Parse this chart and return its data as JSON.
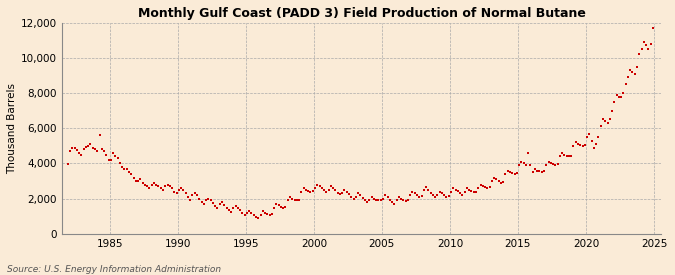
{
  "title": "Monthly Gulf Coast (PADD 3) Field Production of Normal Butane",
  "ylabel": "Thousand Barrels",
  "source_text": "Source: U.S. Energy Information Administration",
  "marker_color": "#cc0000",
  "background_color": "#faebd7",
  "grid_color": "#aaaaaa",
  "ylim": [
    0,
    12000
  ],
  "yticks": [
    0,
    2000,
    4000,
    6000,
    8000,
    10000,
    12000
  ],
  "xlim_start": 1981.5,
  "xlim_end": 2025.5,
  "xticks": [
    1985,
    1990,
    1995,
    2000,
    2005,
    2010,
    2015,
    2020,
    2025
  ],
  "data_points": [
    [
      1981.917,
      3960
    ],
    [
      1982.083,
      4680
    ],
    [
      1982.25,
      4850
    ],
    [
      1982.417,
      4900
    ],
    [
      1982.583,
      4750
    ],
    [
      1982.75,
      4600
    ],
    [
      1982.917,
      4500
    ],
    [
      1983.083,
      4800
    ],
    [
      1983.25,
      4950
    ],
    [
      1983.417,
      5000
    ],
    [
      1983.583,
      5100
    ],
    [
      1983.75,
      4900
    ],
    [
      1983.917,
      4800
    ],
    [
      1984.083,
      4700
    ],
    [
      1984.25,
      5600
    ],
    [
      1984.417,
      4800
    ],
    [
      1984.583,
      4700
    ],
    [
      1984.75,
      4500
    ],
    [
      1984.917,
      4200
    ],
    [
      1985.083,
      4200
    ],
    [
      1985.25,
      4600
    ],
    [
      1985.417,
      4400
    ],
    [
      1985.583,
      4300
    ],
    [
      1985.75,
      4000
    ],
    [
      1985.917,
      3800
    ],
    [
      1986.083,
      3700
    ],
    [
      1986.25,
      3700
    ],
    [
      1986.417,
      3500
    ],
    [
      1986.583,
      3400
    ],
    [
      1986.75,
      3200
    ],
    [
      1986.917,
      3000
    ],
    [
      1987.083,
      3000
    ],
    [
      1987.25,
      3100
    ],
    [
      1987.417,
      2900
    ],
    [
      1987.583,
      2800
    ],
    [
      1987.75,
      2700
    ],
    [
      1987.917,
      2600
    ],
    [
      1988.083,
      2800
    ],
    [
      1988.25,
      2900
    ],
    [
      1988.417,
      2800
    ],
    [
      1988.583,
      2700
    ],
    [
      1988.75,
      2600
    ],
    [
      1988.917,
      2500
    ],
    [
      1989.083,
      2700
    ],
    [
      1989.25,
      2800
    ],
    [
      1989.417,
      2700
    ],
    [
      1989.583,
      2600
    ],
    [
      1989.75,
      2400
    ],
    [
      1989.917,
      2300
    ],
    [
      1990.083,
      2500
    ],
    [
      1990.25,
      2600
    ],
    [
      1990.417,
      2500
    ],
    [
      1990.583,
      2300
    ],
    [
      1990.75,
      2100
    ],
    [
      1990.917,
      1950
    ],
    [
      1991.083,
      2200
    ],
    [
      1991.25,
      2300
    ],
    [
      1991.417,
      2200
    ],
    [
      1991.583,
      2000
    ],
    [
      1991.75,
      1800
    ],
    [
      1991.917,
      1700
    ],
    [
      1992.083,
      1900
    ],
    [
      1992.25,
      2000
    ],
    [
      1992.417,
      1900
    ],
    [
      1992.583,
      1750
    ],
    [
      1992.75,
      1600
    ],
    [
      1992.917,
      1500
    ],
    [
      1993.083,
      1700
    ],
    [
      1993.25,
      1800
    ],
    [
      1993.417,
      1650
    ],
    [
      1993.583,
      1500
    ],
    [
      1993.75,
      1350
    ],
    [
      1993.917,
      1250
    ],
    [
      1994.083,
      1500
    ],
    [
      1994.25,
      1600
    ],
    [
      1994.417,
      1500
    ],
    [
      1994.583,
      1350
    ],
    [
      1994.75,
      1200
    ],
    [
      1994.917,
      1100
    ],
    [
      1995.083,
      1200
    ],
    [
      1995.25,
      1300
    ],
    [
      1995.417,
      1200
    ],
    [
      1995.583,
      1050
    ],
    [
      1995.75,
      950
    ],
    [
      1995.917,
      900
    ],
    [
      1996.083,
      1100
    ],
    [
      1996.25,
      1300
    ],
    [
      1996.417,
      1200
    ],
    [
      1996.583,
      1150
    ],
    [
      1996.75,
      1100
    ],
    [
      1996.917,
      1150
    ],
    [
      1997.083,
      1500
    ],
    [
      1997.25,
      1700
    ],
    [
      1997.417,
      1650
    ],
    [
      1997.583,
      1550
    ],
    [
      1997.75,
      1500
    ],
    [
      1997.917,
      1550
    ],
    [
      1998.083,
      1900
    ],
    [
      1998.25,
      2100
    ],
    [
      1998.417,
      2000
    ],
    [
      1998.583,
      1950
    ],
    [
      1998.75,
      1900
    ],
    [
      1998.917,
      1950
    ],
    [
      1999.083,
      2400
    ],
    [
      1999.25,
      2600
    ],
    [
      1999.417,
      2500
    ],
    [
      1999.583,
      2450
    ],
    [
      1999.75,
      2400
    ],
    [
      1999.917,
      2450
    ],
    [
      2000.083,
      2600
    ],
    [
      2000.25,
      2800
    ],
    [
      2000.417,
      2700
    ],
    [
      2000.583,
      2600
    ],
    [
      2000.75,
      2500
    ],
    [
      2000.917,
      2400
    ],
    [
      2001.083,
      2500
    ],
    [
      2001.25,
      2700
    ],
    [
      2001.417,
      2600
    ],
    [
      2001.583,
      2500
    ],
    [
      2001.75,
      2350
    ],
    [
      2001.917,
      2250
    ],
    [
      2002.083,
      2300
    ],
    [
      2002.25,
      2500
    ],
    [
      2002.417,
      2400
    ],
    [
      2002.583,
      2250
    ],
    [
      2002.75,
      2100
    ],
    [
      2002.917,
      2000
    ],
    [
      2003.083,
      2100
    ],
    [
      2003.25,
      2300
    ],
    [
      2003.417,
      2200
    ],
    [
      2003.583,
      2050
    ],
    [
      2003.75,
      1900
    ],
    [
      2003.917,
      1800
    ],
    [
      2004.083,
      1950
    ],
    [
      2004.25,
      2100
    ],
    [
      2004.417,
      2000
    ],
    [
      2004.583,
      1950
    ],
    [
      2004.75,
      1900
    ],
    [
      2004.917,
      1900
    ],
    [
      2005.083,
      2000
    ],
    [
      2005.25,
      2200
    ],
    [
      2005.417,
      2100
    ],
    [
      2005.583,
      1950
    ],
    [
      2005.75,
      1800
    ],
    [
      2005.917,
      1700
    ],
    [
      2006.083,
      1900
    ],
    [
      2006.25,
      2100
    ],
    [
      2006.417,
      2000
    ],
    [
      2006.583,
      1900
    ],
    [
      2006.75,
      1850
    ],
    [
      2006.917,
      1900
    ],
    [
      2007.083,
      2200
    ],
    [
      2007.25,
      2400
    ],
    [
      2007.417,
      2300
    ],
    [
      2007.583,
      2200
    ],
    [
      2007.75,
      2100
    ],
    [
      2007.917,
      2150
    ],
    [
      2008.083,
      2500
    ],
    [
      2008.25,
      2650
    ],
    [
      2008.417,
      2500
    ],
    [
      2008.583,
      2350
    ],
    [
      2008.75,
      2200
    ],
    [
      2008.917,
      2100
    ],
    [
      2009.083,
      2200
    ],
    [
      2009.25,
      2400
    ],
    [
      2009.417,
      2300
    ],
    [
      2009.583,
      2200
    ],
    [
      2009.75,
      2100
    ],
    [
      2009.917,
      2150
    ],
    [
      2010.083,
      2400
    ],
    [
      2010.25,
      2600
    ],
    [
      2010.417,
      2500
    ],
    [
      2010.583,
      2450
    ],
    [
      2010.75,
      2300
    ],
    [
      2010.917,
      2200
    ],
    [
      2011.083,
      2400
    ],
    [
      2011.25,
      2600
    ],
    [
      2011.417,
      2500
    ],
    [
      2011.583,
      2450
    ],
    [
      2011.75,
      2400
    ],
    [
      2011.917,
      2400
    ],
    [
      2012.083,
      2600
    ],
    [
      2012.25,
      2800
    ],
    [
      2012.417,
      2700
    ],
    [
      2012.583,
      2650
    ],
    [
      2012.75,
      2600
    ],
    [
      2012.917,
      2650
    ],
    [
      2013.083,
      3000
    ],
    [
      2013.25,
      3200
    ],
    [
      2013.417,
      3100
    ],
    [
      2013.583,
      3000
    ],
    [
      2013.75,
      2900
    ],
    [
      2013.917,
      2950
    ],
    [
      2014.083,
      3400
    ],
    [
      2014.25,
      3600
    ],
    [
      2014.417,
      3500
    ],
    [
      2014.583,
      3450
    ],
    [
      2014.75,
      3400
    ],
    [
      2014.917,
      3450
    ],
    [
      2015.083,
      3900
    ],
    [
      2015.25,
      4100
    ],
    [
      2015.417,
      4000
    ],
    [
      2015.583,
      3900
    ],
    [
      2015.75,
      4600
    ],
    [
      2015.917,
      3900
    ],
    [
      2016.083,
      3500
    ],
    [
      2016.25,
      3700
    ],
    [
      2016.417,
      3600
    ],
    [
      2016.583,
      3550
    ],
    [
      2016.75,
      3500
    ],
    [
      2016.917,
      3550
    ],
    [
      2017.083,
      3900
    ],
    [
      2017.25,
      4100
    ],
    [
      2017.417,
      4000
    ],
    [
      2017.583,
      3950
    ],
    [
      2017.75,
      3900
    ],
    [
      2017.917,
      3950
    ],
    [
      2018.083,
      4400
    ],
    [
      2018.25,
      4600
    ],
    [
      2018.417,
      4500
    ],
    [
      2018.583,
      4450
    ],
    [
      2018.75,
      4400
    ],
    [
      2018.917,
      4450
    ],
    [
      2019.083,
      5000
    ],
    [
      2019.25,
      5200
    ],
    [
      2019.417,
      5100
    ],
    [
      2019.583,
      5050
    ],
    [
      2019.75,
      5000
    ],
    [
      2019.917,
      5050
    ],
    [
      2020.083,
      5500
    ],
    [
      2020.25,
      5700
    ],
    [
      2020.417,
      5300
    ],
    [
      2020.583,
      4900
    ],
    [
      2020.75,
      5100
    ],
    [
      2020.917,
      5500
    ],
    [
      2021.083,
      6100
    ],
    [
      2021.25,
      6500
    ],
    [
      2021.417,
      6400
    ],
    [
      2021.583,
      6300
    ],
    [
      2021.75,
      6500
    ],
    [
      2021.917,
      7000
    ],
    [
      2022.083,
      7500
    ],
    [
      2022.25,
      7900
    ],
    [
      2022.417,
      7800
    ],
    [
      2022.583,
      7750
    ],
    [
      2022.75,
      8000
    ],
    [
      2022.917,
      8500
    ],
    [
      2023.083,
      8900
    ],
    [
      2023.25,
      9300
    ],
    [
      2023.417,
      9200
    ],
    [
      2023.583,
      9100
    ],
    [
      2023.75,
      9500
    ],
    [
      2023.917,
      10200
    ],
    [
      2024.083,
      10500
    ],
    [
      2024.25,
      10900
    ],
    [
      2024.417,
      10700
    ],
    [
      2024.583,
      10500
    ],
    [
      2024.75,
      10800
    ],
    [
      2024.917,
      11700
    ]
  ]
}
